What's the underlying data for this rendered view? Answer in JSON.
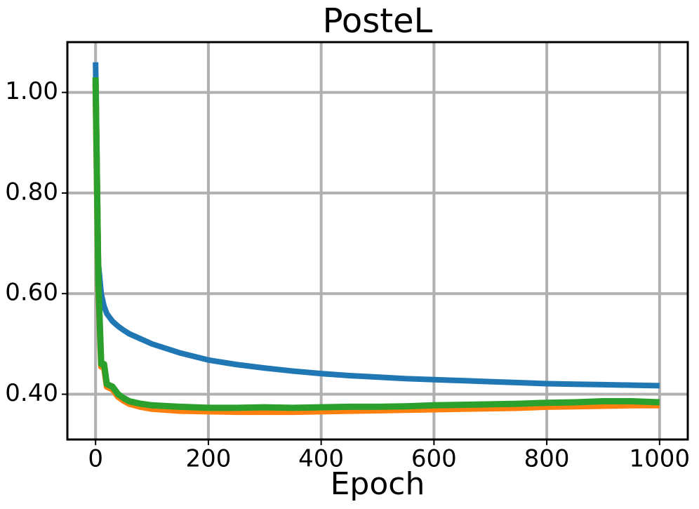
{
  "chart_data": {
    "type": "line",
    "title": "PosteL",
    "xlabel": "Epoch",
    "x": [
      0,
      5,
      10,
      15,
      20,
      30,
      40,
      50,
      60,
      80,
      100,
      150,
      200,
      250,
      300,
      350,
      400,
      450,
      500,
      550,
      600,
      650,
      700,
      750,
      800,
      850,
      900,
      950,
      1000
    ],
    "series": [
      {
        "color": "#1f77b4",
        "values": [
          1.06,
          0.66,
          0.6,
          0.575,
          0.56,
          0.545,
          0.535,
          0.527,
          0.52,
          0.51,
          0.5,
          0.482,
          0.468,
          0.459,
          0.452,
          0.446,
          0.441,
          0.437,
          0.434,
          0.431,
          0.429,
          0.427,
          0.425,
          0.423,
          0.421,
          0.42,
          0.419,
          0.418,
          0.417
        ]
      },
      {
        "color": "#ff7f0e",
        "values": [
          1.02,
          0.61,
          0.455,
          0.455,
          0.415,
          0.41,
          0.395,
          0.387,
          0.381,
          0.375,
          0.371,
          0.367,
          0.366,
          0.365,
          0.365,
          0.365,
          0.366,
          0.367,
          0.368,
          0.369,
          0.37,
          0.371,
          0.372,
          0.373,
          0.375,
          0.376,
          0.377,
          0.378,
          0.378
        ]
      },
      {
        "color": "#2ca02c",
        "values": [
          1.03,
          0.62,
          0.46,
          0.46,
          0.42,
          0.415,
          0.4,
          0.392,
          0.386,
          0.381,
          0.378,
          0.375,
          0.373,
          0.373,
          0.374,
          0.373,
          0.374,
          0.375,
          0.375,
          0.376,
          0.378,
          0.379,
          0.38,
          0.381,
          0.383,
          0.384,
          0.386,
          0.386,
          0.384
        ]
      }
    ],
    "xlim": [
      -50,
      1050
    ],
    "ylim": [
      0.31,
      1.1
    ],
    "xticks": [
      0,
      200,
      400,
      600,
      800,
      1000
    ],
    "yticks": [
      {
        "value": 0.4,
        "label": "0.40"
      },
      {
        "value": 0.6,
        "label": "0.60"
      },
      {
        "value": 0.8,
        "label": "0.80"
      },
      {
        "value": 1.0,
        "label": "1.00"
      }
    ],
    "grid": true
  }
}
